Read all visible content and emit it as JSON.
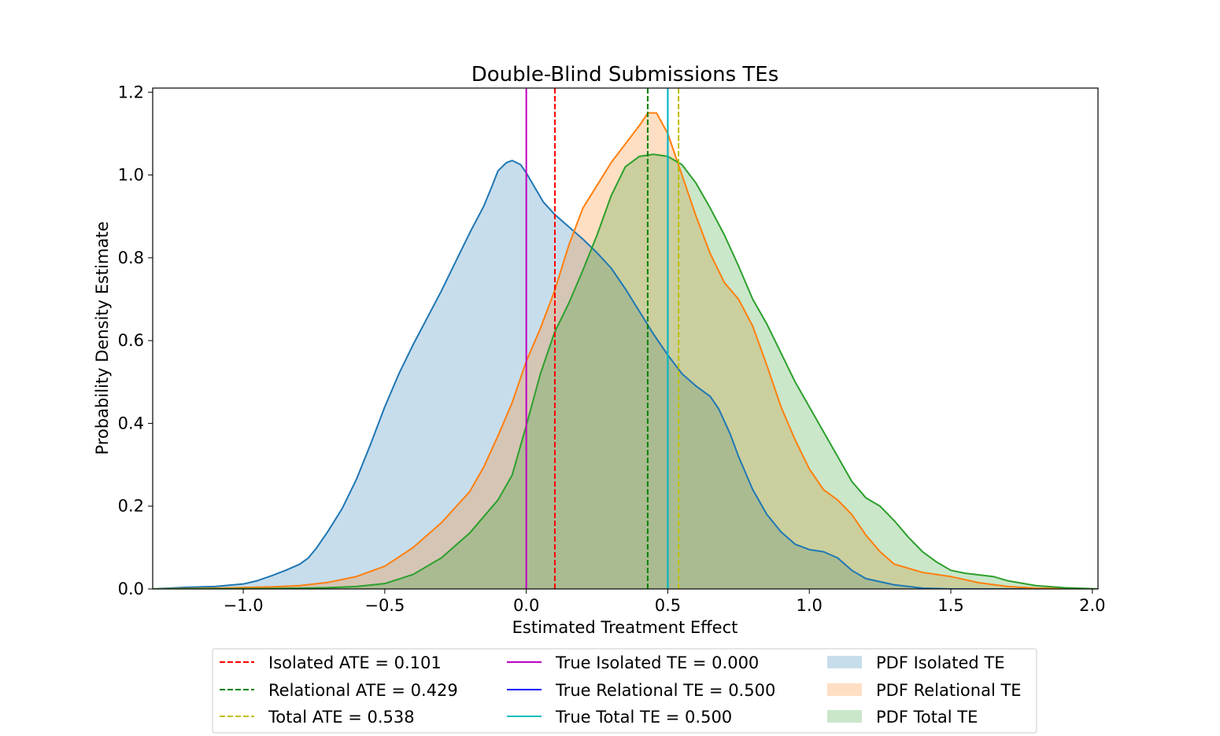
{
  "chart_data": {
    "type": "area",
    "title": "Double-Blind Submissions TEs",
    "xlabel": "Estimated Treatment Effect",
    "ylabel": "Probability Density Estimate",
    "xlim": [
      -1.32,
      2.02
    ],
    "ylim": [
      0,
      1.21
    ],
    "xticks": [
      -1.0,
      -0.5,
      0.0,
      0.5,
      1.0,
      1.5,
      2.0
    ],
    "xtick_labels": [
      "−1.0",
      "−0.5",
      "0.0",
      "0.5",
      "1.0",
      "1.5",
      "2.0"
    ],
    "yticks": [
      0.0,
      0.2,
      0.4,
      0.6,
      0.8,
      1.0,
      1.2
    ],
    "ytick_labels": [
      "0.0",
      "0.2",
      "0.4",
      "0.6",
      "0.8",
      "1.0",
      "1.2"
    ],
    "grid": false,
    "legend_placement": "below",
    "series": [
      {
        "name": "PDF Isolated TE",
        "line_color": "#1f77b4",
        "fill_color": "#1f77b4",
        "points": [
          [
            -1.32,
            0.0
          ],
          [
            -1.2,
            0.004
          ],
          [
            -1.1,
            0.006
          ],
          [
            -1.0,
            0.012
          ],
          [
            -0.95,
            0.02
          ],
          [
            -0.9,
            0.032
          ],
          [
            -0.85,
            0.045
          ],
          [
            -0.8,
            0.06
          ],
          [
            -0.77,
            0.075
          ],
          [
            -0.74,
            0.1
          ],
          [
            -0.7,
            0.14
          ],
          [
            -0.65,
            0.195
          ],
          [
            -0.6,
            0.265
          ],
          [
            -0.55,
            0.35
          ],
          [
            -0.5,
            0.44
          ],
          [
            -0.45,
            0.52
          ],
          [
            -0.4,
            0.59
          ],
          [
            -0.35,
            0.655
          ],
          [
            -0.3,
            0.72
          ],
          [
            -0.25,
            0.79
          ],
          [
            -0.2,
            0.86
          ],
          [
            -0.15,
            0.925
          ],
          [
            -0.12,
            0.975
          ],
          [
            -0.1,
            1.01
          ],
          [
            -0.07,
            1.03
          ],
          [
            -0.05,
            1.035
          ],
          [
            -0.02,
            1.025
          ],
          [
            0.0,
            1.005
          ],
          [
            0.03,
            0.97
          ],
          [
            0.06,
            0.935
          ],
          [
            0.1,
            0.905
          ],
          [
            0.15,
            0.875
          ],
          [
            0.2,
            0.845
          ],
          [
            0.25,
            0.812
          ],
          [
            0.3,
            0.775
          ],
          [
            0.35,
            0.725
          ],
          [
            0.4,
            0.67
          ],
          [
            0.45,
            0.615
          ],
          [
            0.5,
            0.565
          ],
          [
            0.55,
            0.52
          ],
          [
            0.6,
            0.49
          ],
          [
            0.65,
            0.465
          ],
          [
            0.68,
            0.435
          ],
          [
            0.72,
            0.375
          ],
          [
            0.75,
            0.32
          ],
          [
            0.8,
            0.24
          ],
          [
            0.85,
            0.18
          ],
          [
            0.9,
            0.138
          ],
          [
            0.95,
            0.108
          ],
          [
            1.0,
            0.095
          ],
          [
            1.05,
            0.09
          ],
          [
            1.1,
            0.075
          ],
          [
            1.15,
            0.045
          ],
          [
            1.2,
            0.025
          ],
          [
            1.3,
            0.01
          ],
          [
            1.4,
            0.002
          ],
          [
            1.5,
            0.0
          ],
          [
            2.02,
            0.0
          ]
        ]
      },
      {
        "name": "PDF Relational TE",
        "line_color": "#ff7f0e",
        "fill_color": "#ff7f0e",
        "points": [
          [
            -1.32,
            0.0
          ],
          [
            -1.1,
            0.002
          ],
          [
            -0.9,
            0.005
          ],
          [
            -0.8,
            0.008
          ],
          [
            -0.7,
            0.016
          ],
          [
            -0.6,
            0.03
          ],
          [
            -0.5,
            0.055
          ],
          [
            -0.4,
            0.1
          ],
          [
            -0.3,
            0.16
          ],
          [
            -0.2,
            0.235
          ],
          [
            -0.15,
            0.295
          ],
          [
            -0.1,
            0.37
          ],
          [
            -0.05,
            0.45
          ],
          [
            0.0,
            0.55
          ],
          [
            0.05,
            0.63
          ],
          [
            0.1,
            0.72
          ],
          [
            0.15,
            0.83
          ],
          [
            0.2,
            0.92
          ],
          [
            0.25,
            0.975
          ],
          [
            0.3,
            1.03
          ],
          [
            0.35,
            1.075
          ],
          [
            0.4,
            1.12
          ],
          [
            0.43,
            1.15
          ],
          [
            0.46,
            1.15
          ],
          [
            0.5,
            1.1
          ],
          [
            0.55,
            1.0
          ],
          [
            0.6,
            0.9
          ],
          [
            0.65,
            0.81
          ],
          [
            0.7,
            0.74
          ],
          [
            0.75,
            0.7
          ],
          [
            0.8,
            0.635
          ],
          [
            0.85,
            0.54
          ],
          [
            0.9,
            0.44
          ],
          [
            0.95,
            0.36
          ],
          [
            1.0,
            0.29
          ],
          [
            1.05,
            0.24
          ],
          [
            1.1,
            0.215
          ],
          [
            1.15,
            0.18
          ],
          [
            1.2,
            0.13
          ],
          [
            1.25,
            0.09
          ],
          [
            1.3,
            0.06
          ],
          [
            1.4,
            0.04
          ],
          [
            1.5,
            0.03
          ],
          [
            1.6,
            0.015
          ],
          [
            1.7,
            0.006
          ],
          [
            1.8,
            0.002
          ],
          [
            2.02,
            0.0
          ]
        ]
      },
      {
        "name": "PDF Total TE",
        "line_color": "#2ca02c",
        "fill_color": "#2ca02c",
        "points": [
          [
            -1.32,
            0.0
          ],
          [
            -0.9,
            0.001
          ],
          [
            -0.7,
            0.003
          ],
          [
            -0.6,
            0.006
          ],
          [
            -0.5,
            0.013
          ],
          [
            -0.4,
            0.035
          ],
          [
            -0.3,
            0.075
          ],
          [
            -0.2,
            0.135
          ],
          [
            -0.1,
            0.215
          ],
          [
            -0.05,
            0.275
          ],
          [
            0.0,
            0.395
          ],
          [
            0.05,
            0.52
          ],
          [
            0.1,
            0.62
          ],
          [
            0.15,
            0.69
          ],
          [
            0.2,
            0.77
          ],
          [
            0.25,
            0.855
          ],
          [
            0.3,
            0.95
          ],
          [
            0.35,
            1.02
          ],
          [
            0.4,
            1.045
          ],
          [
            0.45,
            1.05
          ],
          [
            0.5,
            1.045
          ],
          [
            0.55,
            1.025
          ],
          [
            0.6,
            0.98
          ],
          [
            0.65,
            0.92
          ],
          [
            0.7,
            0.855
          ],
          [
            0.75,
            0.78
          ],
          [
            0.8,
            0.7
          ],
          [
            0.85,
            0.64
          ],
          [
            0.9,
            0.57
          ],
          [
            0.95,
            0.5
          ],
          [
            1.0,
            0.44
          ],
          [
            1.05,
            0.38
          ],
          [
            1.1,
            0.32
          ],
          [
            1.15,
            0.26
          ],
          [
            1.2,
            0.22
          ],
          [
            1.25,
            0.2
          ],
          [
            1.3,
            0.165
          ],
          [
            1.35,
            0.125
          ],
          [
            1.4,
            0.09
          ],
          [
            1.45,
            0.065
          ],
          [
            1.5,
            0.045
          ],
          [
            1.55,
            0.038
          ],
          [
            1.6,
            0.034
          ],
          [
            1.65,
            0.03
          ],
          [
            1.7,
            0.02
          ],
          [
            1.8,
            0.008
          ],
          [
            1.9,
            0.003
          ],
          [
            2.02,
            0.0
          ]
        ]
      }
    ],
    "vlines": [
      {
        "x": 0.101,
        "color": "#ff0000",
        "dashed": true,
        "label": "Isolated ATE = 0.101"
      },
      {
        "x": 0.429,
        "color": "#008000",
        "dashed": true,
        "label": "Relational ATE = 0.429"
      },
      {
        "x": 0.538,
        "color": "#bfbf00",
        "dashed": true,
        "label": "Total ATE = 0.538"
      },
      {
        "x": 0.0,
        "color": "#bf00bf",
        "dashed": false,
        "label": "True Isolated TE = 0.000"
      },
      {
        "x": 0.5,
        "color": "#0000ff",
        "dashed": false,
        "label": "True Relational TE = 0.500"
      },
      {
        "x": 0.5,
        "color": "#00bfbf",
        "dashed": false,
        "label": "True Total TE = 0.500"
      }
    ],
    "legend": [
      [
        {
          "kind": "line",
          "color": "#ff0000",
          "dashed": true,
          "label": "Isolated ATE = 0.101"
        },
        {
          "kind": "line",
          "color": "#008000",
          "dashed": true,
          "label": "Relational ATE = 0.429"
        },
        {
          "kind": "line",
          "color": "#bfbf00",
          "dashed": true,
          "label": "Total ATE = 0.538"
        }
      ],
      [
        {
          "kind": "line",
          "color": "#bf00bf",
          "dashed": false,
          "label": "True Isolated TE = 0.000"
        },
        {
          "kind": "line",
          "color": "#0000ff",
          "dashed": false,
          "label": "True Relational TE = 0.500"
        },
        {
          "kind": "line",
          "color": "#00bfbf",
          "dashed": false,
          "label": "True Total TE = 0.500"
        }
      ],
      [
        {
          "kind": "patch",
          "color": "#1f77b4",
          "label": "PDF Isolated TE"
        },
        {
          "kind": "patch",
          "color": "#ff7f0e",
          "label": "PDF Relational TE"
        },
        {
          "kind": "patch",
          "color": "#2ca02c",
          "label": "PDF Total TE"
        }
      ]
    ]
  }
}
